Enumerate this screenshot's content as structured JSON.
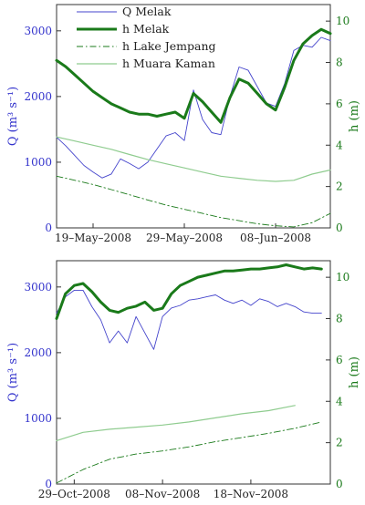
{
  "chart_data": [
    {
      "type": "line",
      "panel": "top",
      "x_ticks": [
        "19–May–2008",
        "29–May–2008",
        "08–Jun–2008"
      ],
      "xlim_days": [
        0,
        30
      ],
      "x_tick_days": [
        4,
        14,
        24
      ],
      "y_left_label": "Q (m³ s⁻¹)",
      "y_left_ticks": [
        0,
        1000,
        2000,
        3000
      ],
      "y_left_lim": [
        0,
        3400
      ],
      "y_right_label": "h (m)",
      "y_right_ticks": [
        0,
        2,
        4,
        6,
        8,
        10
      ],
      "y_right_lim": [
        0,
        10.8
      ],
      "legend": [
        "Q Melak",
        "h Melak",
        "h Lake Jempang",
        "h Muara Kaman"
      ],
      "legend_location": "top-left",
      "series": [
        {
          "name": "Q Melak",
          "axis": "left",
          "color": "#4444cc",
          "style": "thin",
          "x": [
            0,
            1,
            2,
            3,
            4,
            5,
            6,
            7,
            8,
            9,
            10,
            11,
            12,
            13,
            14,
            15,
            16,
            17,
            18,
            19,
            20,
            21,
            22,
            23,
            24,
            25,
            26,
            27,
            28,
            29,
            30
          ],
          "y": [
            1380,
            1250,
            1100,
            950,
            850,
            760,
            820,
            1050,
            980,
            900,
            1000,
            1200,
            1400,
            1450,
            1330,
            2100,
            1650,
            1450,
            1420,
            2000,
            2450,
            2400,
            2150,
            1900,
            1850,
            2200,
            2700,
            2780,
            2750,
            2900,
            2850
          ]
        },
        {
          "name": "h Melak",
          "axis": "right",
          "color": "#1a7a1a",
          "style": "thick",
          "x": [
            0,
            1,
            2,
            3,
            4,
            5,
            6,
            7,
            8,
            9,
            10,
            11,
            12,
            13,
            14,
            15,
            16,
            17,
            18,
            19,
            20,
            21,
            22,
            23,
            24,
            25,
            26,
            27,
            28,
            29,
            30
          ],
          "y": [
            8.1,
            7.8,
            7.4,
            7.0,
            6.6,
            6.3,
            6.0,
            5.8,
            5.6,
            5.5,
            5.5,
            5.4,
            5.5,
            5.6,
            5.3,
            6.5,
            6.1,
            5.6,
            5.1,
            6.3,
            7.2,
            7.0,
            6.5,
            6.0,
            5.7,
            6.8,
            8.1,
            8.9,
            9.3,
            9.6,
            9.4
          ]
        },
        {
          "name": "h Lake Jempang",
          "axis": "right",
          "color": "#1a7a1a",
          "style": "dashdot",
          "x": [
            0,
            2,
            4,
            6,
            8,
            10,
            12,
            14,
            16,
            18,
            20,
            22,
            24,
            26,
            28,
            30
          ],
          "y": [
            2.5,
            2.3,
            2.1,
            1.85,
            1.6,
            1.35,
            1.1,
            0.9,
            0.7,
            0.5,
            0.35,
            0.2,
            0.1,
            0.05,
            0.25,
            0.7
          ]
        },
        {
          "name": "h Muara Kaman",
          "axis": "right",
          "color": "#8fcc8f",
          "style": "light",
          "x": [
            0,
            2,
            4,
            6,
            8,
            10,
            12,
            14,
            16,
            18,
            20,
            22,
            24,
            26,
            28,
            30
          ],
          "y": [
            4.4,
            4.2,
            4.0,
            3.8,
            3.55,
            3.3,
            3.1,
            2.9,
            2.7,
            2.5,
            2.4,
            2.3,
            2.25,
            2.3,
            2.6,
            2.8
          ]
        }
      ]
    },
    {
      "type": "line",
      "panel": "bottom",
      "x_ticks": [
        "29–Oct–2008",
        "08–Nov–2008",
        "18–Nov–2008"
      ],
      "xlim_days": [
        0,
        31
      ],
      "x_tick_days": [
        2,
        12,
        22
      ],
      "y_left_label": "Q (m³ s⁻¹)",
      "y_left_ticks": [
        0,
        1000,
        2000,
        3000
      ],
      "y_left_lim": [
        0,
        3400
      ],
      "y_right_label": "h (m)",
      "y_right_ticks": [
        0,
        2,
        4,
        6,
        8,
        10
      ],
      "y_right_lim": [
        0,
        10.8
      ],
      "series": [
        {
          "name": "Q Melak",
          "axis": "left",
          "color": "#4444cc",
          "style": "thin",
          "x": [
            0,
            1,
            2,
            3,
            4,
            5,
            6,
            7,
            8,
            9,
            10,
            11,
            12,
            13,
            14,
            15,
            16,
            17,
            18,
            19,
            20,
            21,
            22,
            23,
            24,
            25,
            26,
            27,
            28,
            29,
            30
          ],
          "y": [
            2600,
            2850,
            2950,
            2950,
            2700,
            2500,
            2150,
            2330,
            2150,
            2550,
            2300,
            2050,
            2550,
            2680,
            2720,
            2800,
            2820,
            2850,
            2880,
            2800,
            2750,
            2800,
            2720,
            2820,
            2780,
            2700,
            2750,
            2700,
            2620,
            2600,
            2600
          ]
        },
        {
          "name": "h Melak",
          "axis": "right",
          "color": "#1a7a1a",
          "style": "thick",
          "x": [
            0,
            1,
            2,
            3,
            4,
            5,
            6,
            7,
            8,
            9,
            10,
            11,
            12,
            13,
            14,
            15,
            16,
            17,
            18,
            19,
            20,
            21,
            22,
            23,
            24,
            25,
            26,
            27,
            28,
            29,
            30
          ],
          "y": [
            8.0,
            9.2,
            9.6,
            9.7,
            9.3,
            8.8,
            8.4,
            8.3,
            8.5,
            8.6,
            8.8,
            8.4,
            8.5,
            9.2,
            9.6,
            9.8,
            10.0,
            10.1,
            10.2,
            10.3,
            10.3,
            10.35,
            10.4,
            10.4,
            10.45,
            10.5,
            10.6,
            10.5,
            10.4,
            10.45,
            10.4
          ]
        },
        {
          "name": "h Lake Jempang",
          "axis": "right",
          "color": "#1a7a1a",
          "style": "dashdot",
          "x": [
            0,
            3,
            6,
            9,
            12,
            15,
            18,
            21,
            24,
            27,
            30
          ],
          "y": [
            0.05,
            0.7,
            1.2,
            1.45,
            1.6,
            1.8,
            2.05,
            2.25,
            2.45,
            2.7,
            3.0
          ]
        },
        {
          "name": "h Muara Kaman",
          "axis": "right",
          "color": "#8fcc8f",
          "style": "light",
          "x": [
            0,
            3,
            6,
            9,
            12,
            15,
            18,
            21,
            24,
            27
          ],
          "y": [
            2.1,
            2.5,
            2.65,
            2.75,
            2.85,
            3.0,
            3.2,
            3.4,
            3.55,
            3.8
          ]
        }
      ]
    }
  ]
}
